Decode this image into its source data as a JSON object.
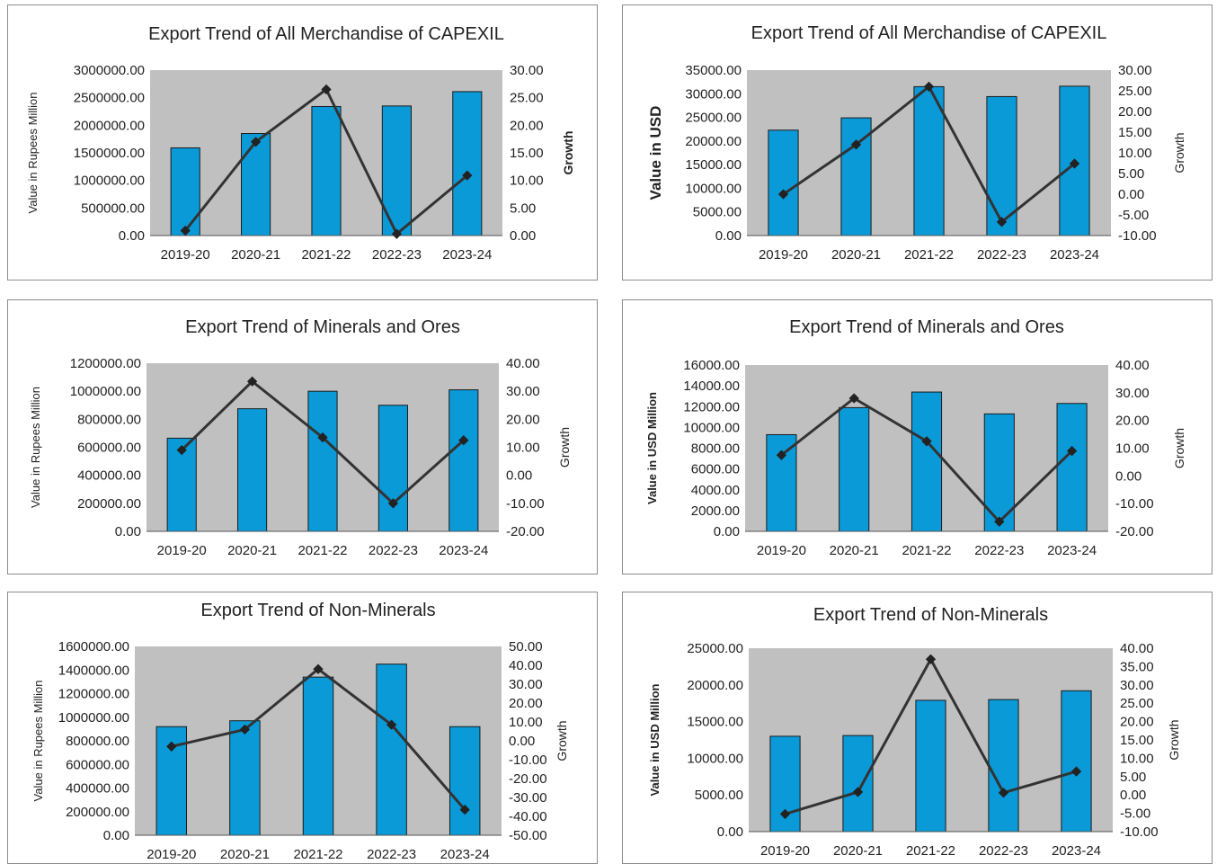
{
  "chart_data": [
    {
      "type": "bar",
      "title": "Export Trend of All Merchandise of CAPEXIL",
      "ylabel": "Value in Rupees Million",
      "y2label": "Growth",
      "categories": [
        "2019-20",
        "2020-21",
        "2021-22",
        "2022-23",
        "2023-24"
      ],
      "series": [
        {
          "kind": "bar",
          "values": [
            1590000,
            1850000,
            2340000,
            2350000,
            2610000
          ]
        },
        {
          "kind": "line",
          "axis": "right",
          "values": [
            0.9,
            17.0,
            26.5,
            0.3,
            10.9
          ]
        }
      ],
      "ylim": [
        0,
        3000000
      ],
      "y2lim": [
        0,
        30
      ],
      "yticks": [
        "0.00",
        "500000.00",
        "1000000.00",
        "1500000.00",
        "2000000.00",
        "2500000.00",
        "3000000.00"
      ],
      "y2ticks": [
        "0.00",
        "5.00",
        "10.00",
        "15.00",
        "20.00",
        "25.00",
        "30.00"
      ],
      "grid": false,
      "colors": {
        "bar": "#0a9ad8",
        "line": "#333333",
        "plot_bg": "#c0c0c0"
      }
    },
    {
      "type": "bar",
      "title": "Export Trend of All Merchandise of CAPEXIL",
      "ylabel": "Value in USD",
      "y2label": "Growth",
      "categories": [
        "2019-20",
        "2020-21",
        "2021-22",
        "2022-23",
        "2023-24"
      ],
      "series": [
        {
          "kind": "bar",
          "values": [
            22300,
            24900,
            31500,
            29400,
            31600
          ]
        },
        {
          "kind": "line",
          "axis": "right",
          "values": [
            0.0,
            12.0,
            26.0,
            -6.7,
            7.4
          ]
        }
      ],
      "ylim": [
        0,
        35000
      ],
      "y2lim": [
        -10,
        30
      ],
      "yticks": [
        "0.00",
        "5000.00",
        "10000.00",
        "15000.00",
        "20000.00",
        "25000.00",
        "30000.00",
        "35000.00"
      ],
      "y2ticks": [
        "-10.00",
        "-5.00",
        "0.00",
        "5.00",
        "10.00",
        "15.00",
        "20.00",
        "25.00",
        "30.00"
      ],
      "grid": false,
      "colors": {
        "bar": "#0a9ad8",
        "line": "#333333",
        "plot_bg": "#c0c0c0"
      }
    },
    {
      "type": "bar",
      "title": "Export Trend of Minerals and Ores",
      "ylabel": "Value in Rupees Million",
      "y2label": "Growth",
      "categories": [
        "2019-20",
        "2020-21",
        "2021-22",
        "2022-23",
        "2023-24"
      ],
      "series": [
        {
          "kind": "bar",
          "values": [
            665000,
            875000,
            1000000,
            900000,
            1010000
          ]
        },
        {
          "kind": "line",
          "axis": "right",
          "values": [
            9.0,
            33.5,
            13.5,
            -10.0,
            12.5
          ]
        }
      ],
      "ylim": [
        0,
        1200000
      ],
      "y2lim": [
        -20,
        40
      ],
      "yticks": [
        "0.00",
        "200000.00",
        "400000.00",
        "600000.00",
        "800000.00",
        "1000000.00",
        "1200000.00"
      ],
      "y2ticks": [
        "-20.00",
        "-10.00",
        "0.00",
        "10.00",
        "20.00",
        "30.00",
        "40.00"
      ],
      "grid": false,
      "colors": {
        "bar": "#0a9ad8",
        "line": "#333333",
        "plot_bg": "#c0c0c0"
      }
    },
    {
      "type": "bar",
      "title": "Export Trend of Minerals and Ores",
      "ylabel": "Value in USD Million",
      "y2label": "Growth",
      "categories": [
        "2019-20",
        "2020-21",
        "2021-22",
        "2022-23",
        "2023-24"
      ],
      "series": [
        {
          "kind": "bar",
          "values": [
            9300,
            11900,
            13400,
            11300,
            12300
          ]
        },
        {
          "kind": "line",
          "axis": "right",
          "values": [
            7.5,
            28.0,
            12.5,
            -16.5,
            9.0
          ]
        }
      ],
      "ylim": [
        0,
        16000
      ],
      "y2lim": [
        -20,
        40
      ],
      "yticks": [
        "0.00",
        "2000.00",
        "4000.00",
        "6000.00",
        "8000.00",
        "10000.00",
        "12000.00",
        "14000.00",
        "16000.00"
      ],
      "y2ticks": [
        "-20.00",
        "-10.00",
        "0.00",
        "10.00",
        "20.00",
        "30.00",
        "40.00"
      ],
      "grid": false,
      "colors": {
        "bar": "#0a9ad8",
        "line": "#333333",
        "plot_bg": "#c0c0c0"
      }
    },
    {
      "type": "bar",
      "title": "Export Trend of Non-Minerals",
      "ylabel": "Value in Rupees Million",
      "y2label": "Growth",
      "categories": [
        "2019-20",
        "2020-21",
        "2021-22",
        "2022-23",
        "2023-24"
      ],
      "series": [
        {
          "kind": "bar",
          "values": [
            920000,
            970000,
            1340000,
            1450000,
            920000
          ]
        },
        {
          "kind": "line",
          "axis": "right",
          "values": [
            -3.0,
            6.0,
            38.0,
            8.5,
            -36.5
          ]
        }
      ],
      "ylim": [
        0,
        1600000
      ],
      "y2lim": [
        -50,
        50
      ],
      "yticks": [
        "0.00",
        "200000.00",
        "400000.00",
        "600000.00",
        "800000.00",
        "1000000.00",
        "1200000.00",
        "1400000.00",
        "1600000.00"
      ],
      "y2ticks": [
        "-50.00",
        "-40.00",
        "-30.00",
        "-20.00",
        "-10.00",
        "0.00",
        "10.00",
        "20.00",
        "30.00",
        "40.00",
        "50.00"
      ],
      "grid": false,
      "colors": {
        "bar": "#0a9ad8",
        "line": "#333333",
        "plot_bg": "#c0c0c0"
      }
    },
    {
      "type": "bar",
      "title": "Export Trend of Non-Minerals",
      "ylabel": "Value in USD Million",
      "y2label": "Growth",
      "categories": [
        "2019-20",
        "2020-21",
        "2021-22",
        "2022-23",
        "2023-24"
      ],
      "series": [
        {
          "kind": "bar",
          "values": [
            13000,
            13100,
            17900,
            18000,
            19200
          ]
        },
        {
          "kind": "line",
          "axis": "right",
          "values": [
            -5.2,
            0.8,
            37.0,
            0.6,
            6.4
          ]
        }
      ],
      "ylim": [
        0,
        25000
      ],
      "y2lim": [
        -10,
        40
      ],
      "yticks": [
        "0.00",
        "5000.00",
        "10000.00",
        "15000.00",
        "20000.00",
        "25000.00"
      ],
      "y2ticks": [
        "-10.00",
        "-5.00",
        "0.00",
        "5.00",
        "10.00",
        "15.00",
        "20.00",
        "25.00",
        "30.00",
        "35.00",
        "40.00"
      ],
      "grid": false,
      "colors": {
        "bar": "#0a9ad8",
        "line": "#333333",
        "plot_bg": "#c0c0c0"
      }
    }
  ]
}
